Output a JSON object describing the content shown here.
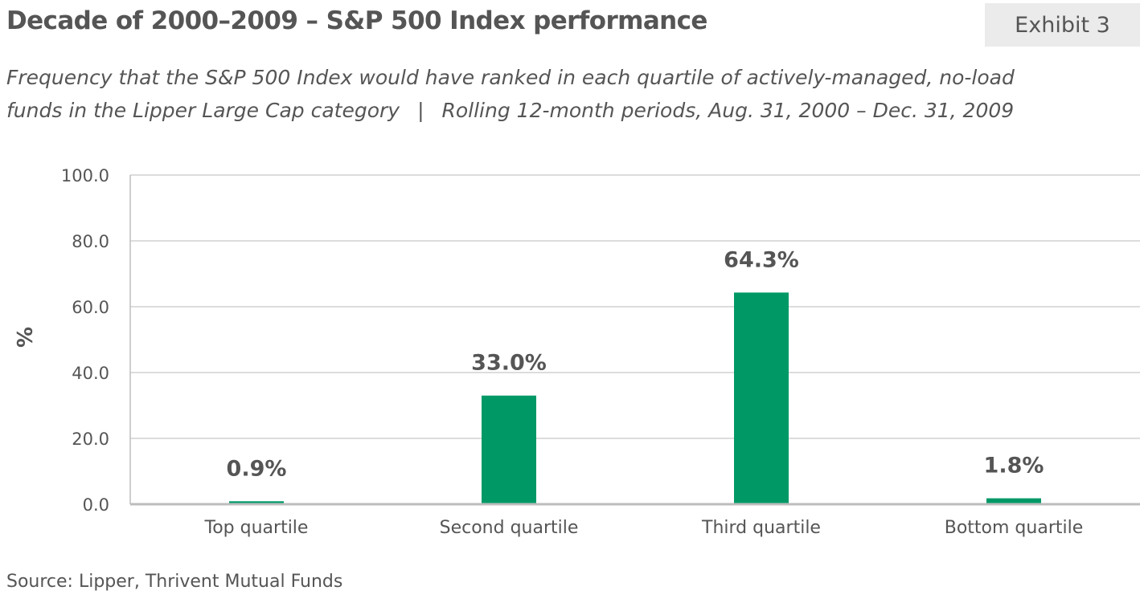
{
  "header": {
    "title": "Decade of 2000–2009 – S&P 500 Index performance",
    "badge": "Exhibit 3",
    "subtitle_line1": "Frequency that the S&P 500 Index would have ranked in each quartile of actively-managed, no-load",
    "subtitle_line2_a": "funds in the Lipper Large Cap category",
    "subtitle_sep": "|",
    "subtitle_line2_b": "Rolling 12-month periods, Aug. 31, 2000 – Dec. 31, 2009"
  },
  "chart_data": {
    "type": "bar",
    "categories": [
      "Top quartile",
      "Second quartile",
      "Third quartile",
      "Bottom quartile"
    ],
    "values": [
      0.9,
      33.0,
      64.3,
      1.8
    ],
    "data_labels": [
      "0.9%",
      "33.0%",
      "64.3%",
      "1.8%"
    ],
    "title": "Decade of 2000–2009 – S&P 500 Index performance",
    "xlabel": "",
    "ylabel": "%",
    "ylim": [
      0,
      100
    ],
    "yticks": [
      0,
      20,
      40,
      60,
      80,
      100
    ],
    "ytick_labels": [
      "0.0",
      "20.0",
      "40.0",
      "60.0",
      "80.0",
      "100.0"
    ],
    "grid": true,
    "bar_color": "#009966"
  },
  "footer": {
    "source": "Source: Lipper, Thrivent Mutual Funds"
  }
}
